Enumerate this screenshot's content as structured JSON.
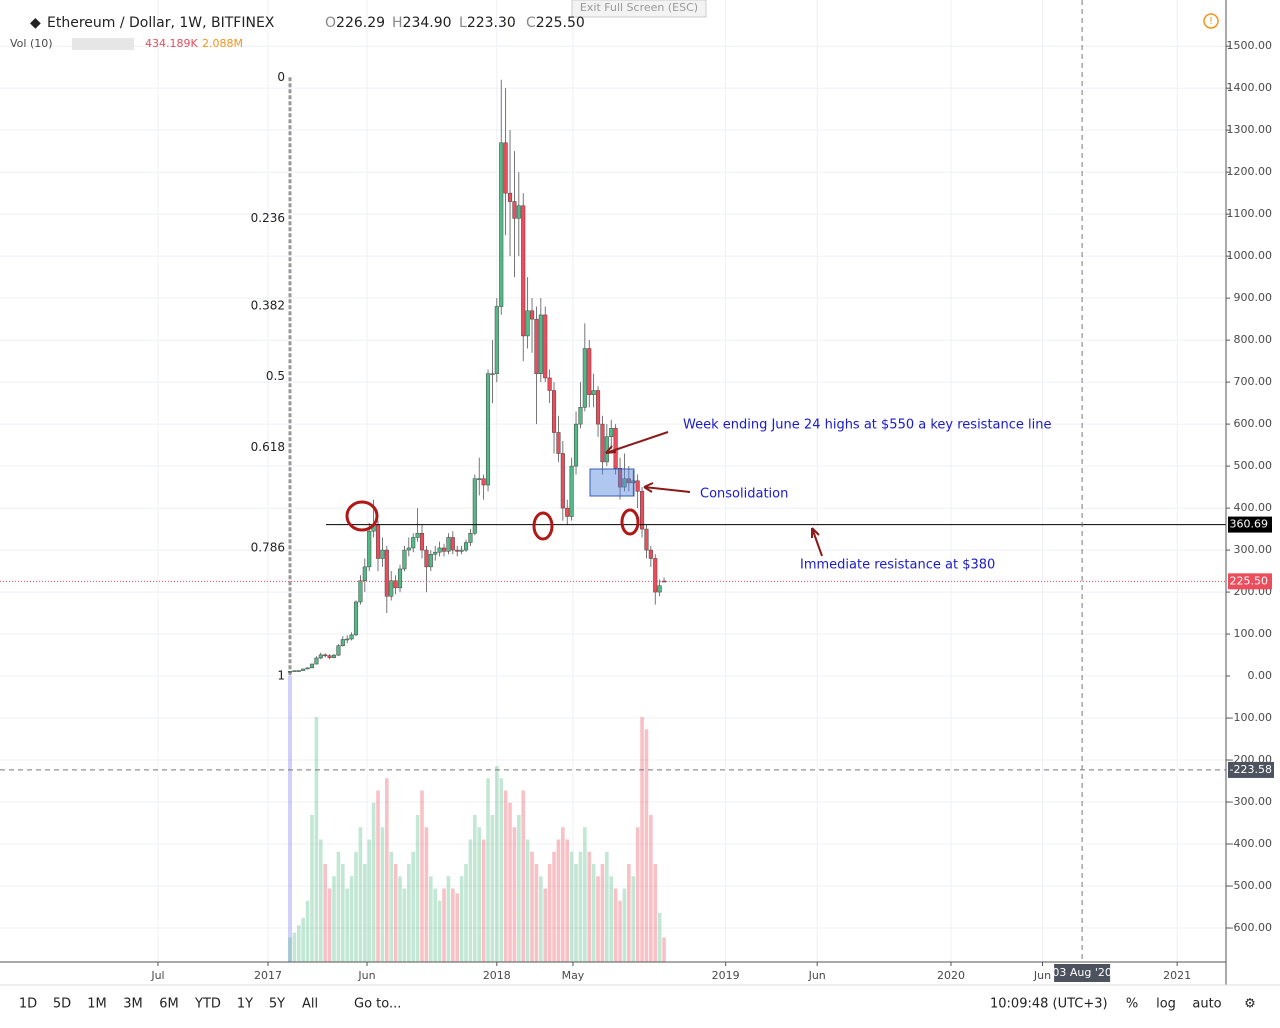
{
  "chart_data": {
    "type": "candlestick",
    "title": "Ethereum / Dollar, 1W, BITFINEX",
    "ohlc_legend": [
      {
        "name": "O",
        "value": "226.29"
      },
      {
        "name": "H",
        "value": "234.90"
      },
      {
        "name": "L",
        "value": "223.30"
      },
      {
        "name": "C",
        "value": "225.50"
      }
    ],
    "volume_legend": {
      "name": "Vol (10)",
      "values": [
        "434.189K",
        "2.088M"
      ]
    },
    "up_color": "#53b987",
    "down_color": "#eb4d5c",
    "x": [
      5,
      6,
      7,
      8,
      9,
      10,
      11,
      12,
      13,
      14,
      15,
      16,
      17,
      18,
      19,
      20,
      21,
      22,
      23,
      24,
      25,
      26,
      27,
      28,
      29,
      30,
      31,
      32,
      33,
      34,
      35,
      36,
      37,
      38,
      39,
      40,
      41,
      42,
      43,
      44,
      45,
      46,
      47,
      48,
      49,
      50,
      51,
      52,
      53,
      54,
      55,
      56,
      57,
      58,
      59,
      60,
      61,
      62,
      63,
      64,
      65,
      66,
      67,
      68,
      69,
      70,
      71,
      72,
      73,
      74,
      75,
      76,
      77,
      78,
      79,
      80,
      81,
      82,
      83,
      84,
      85,
      86,
      87,
      88,
      89,
      90
    ],
    "open": [
      10.8,
      11.4,
      12.8,
      13.1,
      16.9,
      19.5,
      28.6,
      43,
      50.5,
      48.6,
      43.9,
      49.8,
      72.2,
      87,
      88.3,
      98,
      176.5,
      227,
      260,
      345,
      360,
      280,
      300,
      190,
      227,
      210,
      255,
      300,
      305,
      330,
      340,
      300,
      260,
      290,
      295,
      305,
      297,
      330,
      300,
      297,
      300,
      318,
      340,
      470,
      470,
      455,
      720,
      720,
      880,
      1270,
      1150,
      1130,
      1090,
      1120,
      810,
      870,
      850,
      720,
      860,
      710,
      680,
      580,
      530,
      400,
      380,
      500,
      600,
      640,
      780,
      670,
      680,
      600,
      510,
      570,
      590,
      495,
      450,
      470,
      460,
      465,
      440,
      350,
      300,
      280,
      200,
      226.29
    ],
    "high": [
      12,
      13.5,
      13.8,
      17.5,
      20.5,
      30,
      47,
      56,
      54,
      52,
      53,
      76,
      95,
      97,
      104,
      180,
      240,
      280,
      365,
      420,
      370,
      330,
      310,
      250,
      240,
      265,
      310,
      330,
      340,
      400,
      360,
      310,
      300,
      310,
      320,
      315,
      340,
      345,
      310,
      310,
      325,
      350,
      480,
      520,
      480,
      730,
      800,
      900,
      1420,
      1400,
      1300,
      1250,
      1200,
      1150,
      950,
      900,
      880,
      900,
      880,
      730,
      700,
      620,
      560,
      420,
      520,
      630,
      700,
      840,
      800,
      720,
      690,
      620,
      600,
      610,
      600,
      520,
      530,
      500,
      490,
      480,
      450,
      360,
      310,
      290,
      230,
      234.9
    ],
    "low": [
      10.2,
      10.9,
      12.2,
      12.8,
      16,
      18.5,
      28,
      40,
      44,
      40,
      42,
      48,
      70,
      78,
      85,
      95,
      170,
      200,
      250,
      330,
      250,
      260,
      150,
      180,
      195,
      200,
      250,
      285,
      295,
      320,
      280,
      200,
      250,
      275,
      285,
      285,
      290,
      290,
      285,
      290,
      295,
      310,
      335,
      430,
      420,
      440,
      650,
      700,
      860,
      1050,
      1000,
      950,
      1000,
      750,
      780,
      770,
      600,
      700,
      700,
      650,
      530,
      510,
      370,
      360,
      370,
      480,
      590,
      630,
      640,
      640,
      570,
      480,
      500,
      540,
      480,
      420,
      440,
      440,
      430,
      400,
      330,
      280,
      260,
      170,
      190,
      223.3
    ],
    "close": [
      11.4,
      12.8,
      13.1,
      16.9,
      19.5,
      28.6,
      43,
      50.5,
      48.6,
      43.9,
      49.8,
      72.2,
      87,
      88.3,
      98,
      176.5,
      227,
      260,
      345,
      360,
      280,
      300,
      190,
      227,
      210,
      255,
      300,
      305,
      330,
      340,
      300,
      260,
      290,
      295,
      305,
      297,
      330,
      300,
      297,
      300,
      318,
      340,
      470,
      470,
      455,
      720,
      720,
      880,
      1270,
      1150,
      1130,
      1090,
      1120,
      810,
      870,
      850,
      720,
      860,
      710,
      680,
      580,
      530,
      400,
      380,
      500,
      600,
      640,
      780,
      670,
      680,
      600,
      510,
      570,
      590,
      495,
      450,
      470,
      460,
      465,
      440,
      350,
      300,
      280,
      200,
      215,
      225.5
    ],
    "volume": [
      10,
      12,
      15,
      18,
      25,
      60,
      100,
      50,
      40,
      30,
      35,
      45,
      40,
      30,
      35,
      45,
      55,
      40,
      50,
      65,
      70,
      55,
      75,
      45,
      40,
      35,
      30,
      40,
      45,
      60,
      70,
      55,
      35,
      30,
      25,
      30,
      35,
      30,
      28,
      35,
      40,
      50,
      60,
      55,
      50,
      75,
      60,
      80,
      75,
      70,
      65,
      55,
      60,
      70,
      50,
      45,
      40,
      35,
      30,
      40,
      45,
      50,
      55,
      50,
      45,
      40,
      45,
      55,
      45,
      40,
      35,
      40,
      45,
      35,
      30,
      25,
      30,
      40,
      35,
      55,
      100,
      95,
      60,
      40,
      20,
      10
    ],
    "volume_lim": [
      0,
      100
    ],
    "xlim": [
      -60.9,
      217.7
    ],
    "xticks": [
      {
        "value": -25,
        "label": "Jul"
      },
      {
        "value": 0,
        "label": "2017"
      },
      {
        "value": 22.5,
        "label": "Jun"
      },
      {
        "value": 52,
        "label": "2018"
      },
      {
        "value": 69.3,
        "label": "May"
      },
      {
        "value": 104,
        "label": "2019"
      },
      {
        "value": 124.8,
        "label": "Jun"
      },
      {
        "value": 155.2,
        "label": "2020"
      },
      {
        "value": 176,
        "label": "Jun"
      },
      {
        "value": 206.6,
        "label": "2021"
      }
    ],
    "ylim": [
      -681,
      1610
    ],
    "yticks": [
      {
        "value": -600,
        "label": "-600.00"
      },
      {
        "value": -500,
        "label": "-500.00"
      },
      {
        "value": -400,
        "label": "-400.00"
      },
      {
        "value": -300,
        "label": "-300.00"
      },
      {
        "value": -200,
        "label": "-200.00"
      },
      {
        "value": -100,
        "label": "-100.00"
      },
      {
        "value": 0,
        "label": "0.00"
      },
      {
        "value": 100,
        "label": "100.00"
      },
      {
        "value": 200,
        "label": "200.00"
      },
      {
        "value": 300,
        "label": "300.00"
      },
      {
        "value": 400,
        "label": "400.00"
      },
      {
        "value": 500,
        "label": "500.00"
      },
      {
        "value": 600,
        "label": "600.00"
      },
      {
        "value": 700,
        "label": "700.00"
      },
      {
        "value": 800,
        "label": "800.00"
      },
      {
        "value": 900,
        "label": "900.00"
      },
      {
        "value": 1000,
        "label": "1000.00"
      },
      {
        "value": 1100,
        "label": "1100.00"
      },
      {
        "value": 1200,
        "label": "1200.00"
      },
      {
        "value": 1300,
        "label": "1300.00"
      },
      {
        "value": 1400,
        "label": "1400.00"
      },
      {
        "value": 1500,
        "label": "1500.00"
      }
    ],
    "grid": true,
    "fib": {
      "high": 1426,
      "low": 0,
      "levels": [
        0,
        0.236,
        0.382,
        0.5,
        0.618,
        0.786,
        1
      ]
    },
    "support_line": {
      "value": 360.69,
      "label": "360.69"
    },
    "last_price": {
      "value": 225.5,
      "label": "225.50"
    },
    "crosshair": {
      "y": {
        "value": -223.58,
        "label": "-223.58"
      },
      "x": {
        "value": 185,
        "label": "03 Aug '20"
      }
    },
    "annotations": [
      "Week ending June 24 highs at $550 a key resistance line",
      "Consolidation",
      "Immediate resistance at $380"
    ]
  },
  "ui": {
    "exit": "Exit Full Screen (ESC)",
    "ranges": [
      "1D",
      "5D",
      "1M",
      "3M",
      "6M",
      "YTD",
      "1Y",
      "5Y",
      "All"
    ],
    "goto": "Go to...",
    "clock": "10:09:48 (UTC+3)",
    "options": [
      "%",
      "log",
      "auto"
    ]
  }
}
